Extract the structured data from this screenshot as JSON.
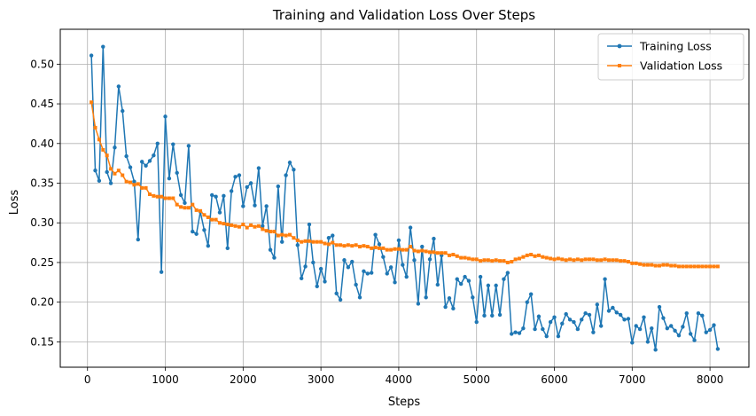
{
  "chart_data": {
    "type": "line",
    "title": "Training and Validation Loss Over Steps",
    "xlabel": "Steps",
    "ylabel": "Loss",
    "xlim": [
      -350,
      8500
    ],
    "ylim": [
      0.118,
      0.544
    ],
    "xticks": [
      0,
      1000,
      2000,
      3000,
      4000,
      5000,
      6000,
      7000,
      8000
    ],
    "yticks": [
      0.15,
      0.2,
      0.25,
      0.3,
      0.35,
      0.4,
      0.45,
      0.5
    ],
    "ytick_labels": [
      "0.15",
      "0.20",
      "0.25",
      "0.30",
      "0.35",
      "0.40",
      "0.45",
      "0.50"
    ],
    "grid": true,
    "legend": "top-right",
    "series": [
      {
        "name": "Training Loss",
        "color": "#1f77b4",
        "marker": "circle",
        "x": [
          50,
          100,
          150,
          200,
          250,
          300,
          350,
          400,
          450,
          500,
          550,
          600,
          650,
          700,
          750,
          800,
          850,
          900,
          950,
          1000,
          1050,
          1100,
          1150,
          1200,
          1250,
          1300,
          1350,
          1400,
          1450,
          1500,
          1550,
          1600,
          1650,
          1700,
          1750,
          1800,
          1850,
          1900,
          1950,
          2000,
          2050,
          2100,
          2150,
          2200,
          2250,
          2300,
          2350,
          2400,
          2450,
          2500,
          2550,
          2600,
          2650,
          2700,
          2750,
          2800,
          2850,
          2900,
          2950,
          3000,
          3050,
          3100,
          3150,
          3200,
          3250,
          3300,
          3350,
          3400,
          3450,
          3500,
          3550,
          3600,
          3650,
          3700,
          3750,
          3800,
          3850,
          3900,
          3950,
          4000,
          4050,
          4100,
          4150,
          4200,
          4250,
          4300,
          4350,
          4400,
          4450,
          4500,
          4550,
          4600,
          4650,
          4700,
          4750,
          4800,
          4850,
          4900,
          4950,
          5000,
          5050,
          5100,
          5150,
          5200,
          5250,
          5300,
          5350,
          5400,
          5450,
          5500,
          5550,
          5600,
          5650,
          5700,
          5750,
          5800,
          5850,
          5900,
          5950,
          6000,
          6050,
          6100,
          6150,
          6200,
          6250,
          6300,
          6350,
          6400,
          6450,
          6500,
          6550,
          6600,
          6650,
          6700,
          6750,
          6800,
          6850,
          6900,
          6950,
          7000,
          7050,
          7100,
          7150,
          7200,
          7250,
          7300,
          7350,
          7400,
          7450,
          7500,
          7550,
          7600,
          7650,
          7700,
          7750,
          7800,
          7850,
          7900,
          7950,
          8000,
          8050,
          8100
        ],
        "y": [
          0.511,
          0.366,
          0.353,
          0.522,
          0.364,
          0.35,
          0.395,
          0.472,
          0.441,
          0.384,
          0.37,
          0.352,
          0.279,
          0.377,
          0.372,
          0.378,
          0.385,
          0.4,
          0.238,
          0.434,
          0.356,
          0.399,
          0.363,
          0.335,
          0.325,
          0.397,
          0.289,
          0.286,
          0.314,
          0.291,
          0.271,
          0.335,
          0.333,
          0.313,
          0.334,
          0.268,
          0.34,
          0.358,
          0.36,
          0.321,
          0.345,
          0.35,
          0.322,
          0.369,
          0.296,
          0.321,
          0.266,
          0.256,
          0.346,
          0.276,
          0.36,
          0.376,
          0.367,
          0.272,
          0.23,
          0.245,
          0.298,
          0.25,
          0.22,
          0.242,
          0.226,
          0.281,
          0.284,
          0.211,
          0.203,
          0.253,
          0.244,
          0.251,
          0.222,
          0.206,
          0.239,
          0.236,
          0.237,
          0.285,
          0.273,
          0.257,
          0.236,
          0.244,
          0.225,
          0.278,
          0.247,
          0.232,
          0.294,
          0.253,
          0.198,
          0.27,
          0.206,
          0.254,
          0.28,
          0.222,
          0.259,
          0.194,
          0.205,
          0.192,
          0.229,
          0.223,
          0.232,
          0.227,
          0.206,
          0.175,
          0.232,
          0.183,
          0.221,
          0.183,
          0.221,
          0.184,
          0.229,
          0.237,
          0.16,
          0.162,
          0.161,
          0.167,
          0.2,
          0.21,
          0.166,
          0.182,
          0.166,
          0.157,
          0.175,
          0.181,
          0.157,
          0.173,
          0.185,
          0.178,
          0.175,
          0.166,
          0.178,
          0.186,
          0.184,
          0.162,
          0.197,
          0.17,
          0.229,
          0.189,
          0.193,
          0.187,
          0.184,
          0.178,
          0.179,
          0.149,
          0.17,
          0.166,
          0.181,
          0.15,
          0.167,
          0.14,
          0.194,
          0.18,
          0.167,
          0.17,
          0.164,
          0.158,
          0.169,
          0.186,
          0.16,
          0.152,
          0.186,
          0.183,
          0.162,
          0.165,
          0.171,
          0.141
        ]
      },
      {
        "name": "Validation Loss",
        "color": "#ff7f0e",
        "marker": "square",
        "x": [
          50,
          100,
          150,
          200,
          250,
          300,
          350,
          400,
          450,
          500,
          550,
          600,
          650,
          700,
          750,
          800,
          850,
          900,
          950,
          1000,
          1050,
          1100,
          1150,
          1200,
          1250,
          1300,
          1350,
          1400,
          1450,
          1500,
          1550,
          1600,
          1650,
          1700,
          1750,
          1800,
          1850,
          1900,
          1950,
          2000,
          2050,
          2100,
          2150,
          2200,
          2250,
          2300,
          2350,
          2400,
          2450,
          2500,
          2550,
          2600,
          2650,
          2700,
          2750,
          2800,
          2850,
          2900,
          2950,
          3000,
          3050,
          3100,
          3150,
          3200,
          3250,
          3300,
          3350,
          3400,
          3450,
          3500,
          3550,
          3600,
          3650,
          3700,
          3750,
          3800,
          3850,
          3900,
          3950,
          4000,
          4050,
          4100,
          4150,
          4200,
          4250,
          4300,
          4350,
          4400,
          4450,
          4500,
          4550,
          4600,
          4650,
          4700,
          4750,
          4800,
          4850,
          4900,
          4950,
          5000,
          5050,
          5100,
          5150,
          5200,
          5250,
          5300,
          5350,
          5400,
          5450,
          5500,
          5550,
          5600,
          5650,
          5700,
          5750,
          5800,
          5850,
          5900,
          5950,
          6000,
          6050,
          6100,
          6150,
          6200,
          6250,
          6300,
          6350,
          6400,
          6450,
          6500,
          6550,
          6600,
          6650,
          6700,
          6750,
          6800,
          6850,
          6900,
          6950,
          7000,
          7050,
          7100,
          7150,
          7200,
          7250,
          7300,
          7350,
          7400,
          7450,
          7500,
          7550,
          7600,
          7650,
          7700,
          7750,
          7800,
          7850,
          7900,
          7950,
          8000,
          8050,
          8100
        ],
        "y": [
          0.452,
          0.42,
          0.405,
          0.392,
          0.385,
          0.368,
          0.362,
          0.366,
          0.36,
          0.352,
          0.351,
          0.348,
          0.349,
          0.344,
          0.344,
          0.336,
          0.334,
          0.333,
          0.333,
          0.331,
          0.331,
          0.331,
          0.323,
          0.32,
          0.319,
          0.319,
          0.323,
          0.316,
          0.315,
          0.31,
          0.307,
          0.304,
          0.304,
          0.3,
          0.299,
          0.298,
          0.297,
          0.296,
          0.295,
          0.298,
          0.294,
          0.297,
          0.295,
          0.296,
          0.292,
          0.29,
          0.289,
          0.289,
          0.284,
          0.285,
          0.284,
          0.285,
          0.281,
          0.278,
          0.276,
          0.277,
          0.277,
          0.276,
          0.276,
          0.276,
          0.274,
          0.273,
          0.275,
          0.272,
          0.272,
          0.271,
          0.272,
          0.271,
          0.272,
          0.27,
          0.271,
          0.27,
          0.268,
          0.269,
          0.268,
          0.268,
          0.266,
          0.266,
          0.267,
          0.267,
          0.266,
          0.266,
          0.27,
          0.265,
          0.264,
          0.265,
          0.264,
          0.263,
          0.263,
          0.262,
          0.262,
          0.262,
          0.259,
          0.26,
          0.258,
          0.256,
          0.256,
          0.255,
          0.254,
          0.254,
          0.252,
          0.253,
          0.253,
          0.252,
          0.253,
          0.252,
          0.252,
          0.25,
          0.251,
          0.254,
          0.255,
          0.257,
          0.259,
          0.26,
          0.258,
          0.259,
          0.257,
          0.256,
          0.255,
          0.254,
          0.255,
          0.254,
          0.253,
          0.254,
          0.253,
          0.254,
          0.253,
          0.254,
          0.254,
          0.254,
          0.253,
          0.253,
          0.254,
          0.253,
          0.253,
          0.253,
          0.252,
          0.252,
          0.251,
          0.249,
          0.249,
          0.248,
          0.247,
          0.247,
          0.247,
          0.246,
          0.246,
          0.247,
          0.247,
          0.246,
          0.246,
          0.245,
          0.245,
          0.245,
          0.245,
          0.245,
          0.245,
          0.245,
          0.245,
          0.245,
          0.245,
          0.245
        ]
      }
    ]
  }
}
